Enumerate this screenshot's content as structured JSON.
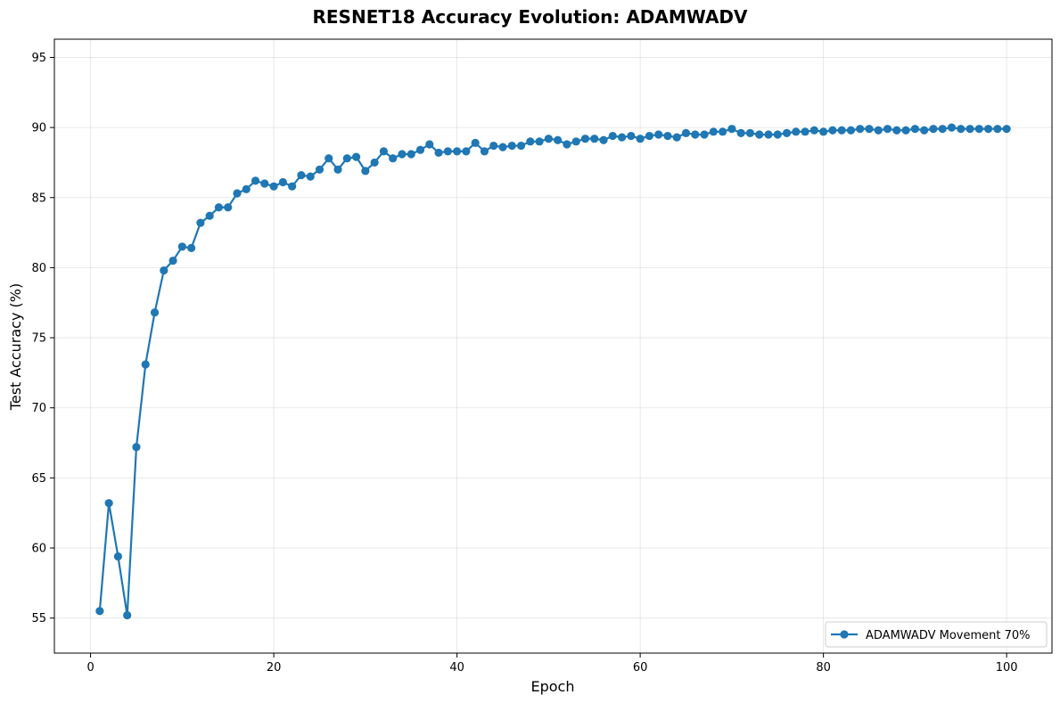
{
  "chart_data": {
    "type": "line",
    "title": "RESNET18 Accuracy Evolution: ADAMWADV",
    "xlabel": "Epoch",
    "ylabel": "Test Accuracy (%)",
    "xlim": [
      -3.95,
      104.95
    ],
    "ylim": [
      52.5,
      96.3
    ],
    "xticks": [
      0,
      20,
      40,
      60,
      80,
      100
    ],
    "yticks": [
      55,
      60,
      65,
      70,
      75,
      80,
      85,
      90,
      95
    ],
    "grid": true,
    "legend_position": "lower-right",
    "colors": {
      "series": "#1f77b4"
    },
    "series": [
      {
        "name": "ADAMWADV Movement 70%",
        "marker": "circle",
        "x": [
          1,
          2,
          3,
          4,
          5,
          6,
          7,
          8,
          9,
          10,
          11,
          12,
          13,
          14,
          15,
          16,
          17,
          18,
          19,
          20,
          21,
          22,
          23,
          24,
          25,
          26,
          27,
          28,
          29,
          30,
          31,
          32,
          33,
          34,
          35,
          36,
          37,
          38,
          39,
          40,
          41,
          42,
          43,
          44,
          45,
          46,
          47,
          48,
          49,
          50,
          51,
          52,
          53,
          54,
          55,
          56,
          57,
          58,
          59,
          60,
          61,
          62,
          63,
          64,
          65,
          66,
          67,
          68,
          69,
          70,
          71,
          72,
          73,
          74,
          75,
          76,
          77,
          78,
          79,
          80,
          81,
          82,
          83,
          84,
          85,
          86,
          87,
          88,
          89,
          90,
          91,
          92,
          93,
          94,
          95,
          96,
          97,
          98,
          99,
          100
        ],
        "y": [
          55.5,
          63.2,
          59.4,
          55.2,
          67.2,
          73.1,
          76.8,
          79.8,
          80.5,
          81.5,
          81.4,
          83.2,
          83.7,
          84.3,
          84.3,
          85.3,
          85.6,
          86.2,
          86.0,
          85.8,
          86.1,
          85.8,
          86.6,
          86.5,
          87.0,
          87.8,
          87.0,
          87.8,
          87.9,
          86.9,
          87.5,
          88.3,
          87.8,
          88.1,
          88.1,
          88.4,
          88.8,
          88.2,
          88.3,
          88.3,
          88.3,
          88.9,
          88.3,
          88.7,
          88.6,
          88.7,
          88.7,
          89.0,
          89.0,
          89.2,
          89.1,
          88.8,
          89.0,
          89.2,
          89.2,
          89.1,
          89.4,
          89.3,
          89.4,
          89.2,
          89.4,
          89.5,
          89.4,
          89.3,
          89.6,
          89.5,
          89.5,
          89.7,
          89.7,
          89.9,
          89.6,
          89.6,
          89.5,
          89.5,
          89.5,
          89.6,
          89.7,
          89.7,
          89.8,
          89.7,
          89.8,
          89.8,
          89.8,
          89.9,
          89.9,
          89.8,
          89.9,
          89.8,
          89.8,
          89.9,
          89.8,
          89.9,
          89.9,
          90.0,
          89.9,
          89.9,
          89.9,
          89.9,
          89.9,
          89.9
        ]
      }
    ]
  }
}
